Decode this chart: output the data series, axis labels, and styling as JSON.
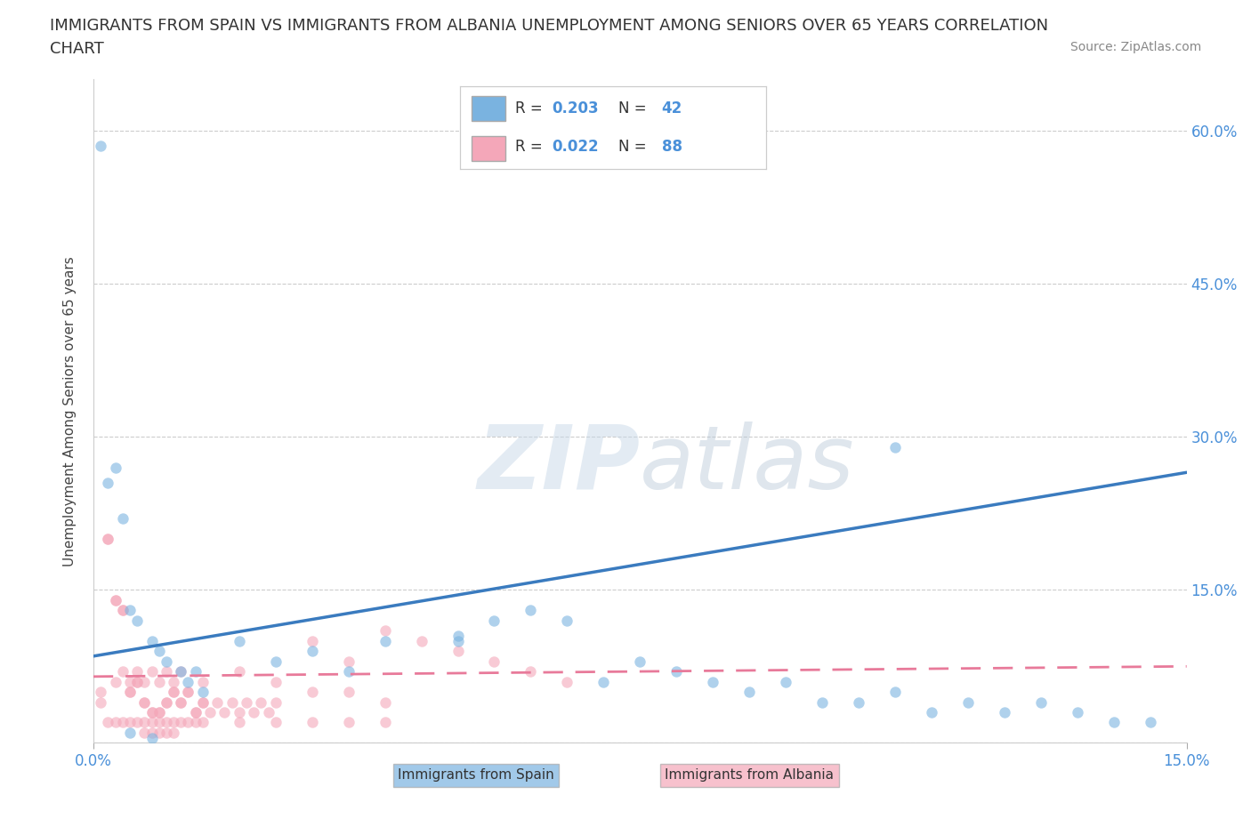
{
  "title_line1": "IMMIGRANTS FROM SPAIN VS IMMIGRANTS FROM ALBANIA UNEMPLOYMENT AMONG SENIORS OVER 65 YEARS CORRELATION",
  "title_line2": "CHART",
  "source": "Source: ZipAtlas.com",
  "ylabel": "Unemployment Among Seniors over 65 years",
  "xlim": [
    0,
    0.15
  ],
  "ylim": [
    0,
    0.65
  ],
  "yticks": [
    0.0,
    0.15,
    0.3,
    0.45,
    0.6
  ],
  "ytick_labels": [
    "",
    "15.0%",
    "30.0%",
    "45.0%",
    "60.0%"
  ],
  "xtick_vals": [
    0.0,
    0.15
  ],
  "xtick_labels": [
    "0.0%",
    "15.0%"
  ],
  "spain_color": "#7ab3e0",
  "albania_color": "#f4a7b9",
  "spain_line_color": "#3a7bbf",
  "albania_line_color": "#e87a9a",
  "spain_label": "Immigrants from Spain",
  "albania_label": "Immigrants from Albania",
  "spain_R": "0.203",
  "spain_N": "42",
  "albania_R": "0.022",
  "albania_N": "88",
  "watermark_zip": "ZIP",
  "watermark_atlas": "atlas",
  "background_color": "#ffffff",
  "spain_scatter_x": [
    0.001,
    0.002,
    0.003,
    0.004,
    0.005,
    0.006,
    0.008,
    0.009,
    0.01,
    0.012,
    0.013,
    0.014,
    0.015,
    0.02,
    0.025,
    0.03,
    0.035,
    0.04,
    0.05,
    0.055,
    0.06,
    0.065,
    0.07,
    0.075,
    0.08,
    0.085,
    0.09,
    0.095,
    0.1,
    0.105,
    0.11,
    0.115,
    0.12,
    0.125,
    0.13,
    0.135,
    0.14,
    0.145,
    0.11,
    0.005,
    0.008,
    0.05
  ],
  "spain_scatter_y": [
    0.585,
    0.255,
    0.27,
    0.22,
    0.13,
    0.12,
    0.1,
    0.09,
    0.08,
    0.07,
    0.06,
    0.07,
    0.05,
    0.1,
    0.08,
    0.09,
    0.07,
    0.1,
    0.1,
    0.12,
    0.13,
    0.12,
    0.06,
    0.08,
    0.07,
    0.06,
    0.05,
    0.06,
    0.04,
    0.04,
    0.05,
    0.03,
    0.04,
    0.03,
    0.04,
    0.03,
    0.02,
    0.02,
    0.29,
    0.01,
    0.005,
    0.105
  ],
  "albania_scatter_x": [
    0.001,
    0.001,
    0.002,
    0.002,
    0.003,
    0.003,
    0.004,
    0.004,
    0.005,
    0.005,
    0.006,
    0.006,
    0.007,
    0.007,
    0.008,
    0.008,
    0.009,
    0.009,
    0.01,
    0.01,
    0.011,
    0.011,
    0.012,
    0.012,
    0.013,
    0.013,
    0.014,
    0.014,
    0.015,
    0.015,
    0.016,
    0.017,
    0.018,
    0.019,
    0.02,
    0.021,
    0.022,
    0.023,
    0.024,
    0.025,
    0.03,
    0.035,
    0.04,
    0.045,
    0.05,
    0.055,
    0.06,
    0.065,
    0.003,
    0.004,
    0.005,
    0.006,
    0.007,
    0.008,
    0.009,
    0.01,
    0.011,
    0.012,
    0.015,
    0.02,
    0.025,
    0.03,
    0.035,
    0.04,
    0.002,
    0.003,
    0.004,
    0.005,
    0.006,
    0.007,
    0.008,
    0.009,
    0.01,
    0.011,
    0.012,
    0.013,
    0.014,
    0.015,
    0.02,
    0.025,
    0.03,
    0.035,
    0.04,
    0.007,
    0.008,
    0.009,
    0.01,
    0.011
  ],
  "albania_scatter_y": [
    0.05,
    0.04,
    0.2,
    0.2,
    0.14,
    0.14,
    0.13,
    0.13,
    0.05,
    0.05,
    0.06,
    0.06,
    0.04,
    0.04,
    0.03,
    0.03,
    0.03,
    0.03,
    0.04,
    0.04,
    0.05,
    0.05,
    0.04,
    0.04,
    0.05,
    0.05,
    0.03,
    0.03,
    0.04,
    0.04,
    0.03,
    0.04,
    0.03,
    0.04,
    0.03,
    0.04,
    0.03,
    0.04,
    0.03,
    0.04,
    0.1,
    0.08,
    0.11,
    0.1,
    0.09,
    0.08,
    0.07,
    0.06,
    0.06,
    0.07,
    0.06,
    0.07,
    0.06,
    0.07,
    0.06,
    0.07,
    0.06,
    0.07,
    0.06,
    0.07,
    0.06,
    0.05,
    0.05,
    0.04,
    0.02,
    0.02,
    0.02,
    0.02,
    0.02,
    0.02,
    0.02,
    0.02,
    0.02,
    0.02,
    0.02,
    0.02,
    0.02,
    0.02,
    0.02,
    0.02,
    0.02,
    0.02,
    0.02,
    0.01,
    0.01,
    0.01,
    0.01,
    0.01
  ],
  "spain_trend_x": [
    0.0,
    0.15
  ],
  "spain_trend_y": [
    0.085,
    0.265
  ],
  "albania_trend_x": [
    0.0,
    0.15
  ],
  "albania_trend_y": [
    0.065,
    0.075
  ],
  "marker_size": 80,
  "marker_alpha": 0.6,
  "title_fontsize": 13,
  "axis_label_fontsize": 11,
  "tick_label_color": "#4a90d9",
  "grid_color": "#cccccc",
  "legend_fontsize": 12
}
